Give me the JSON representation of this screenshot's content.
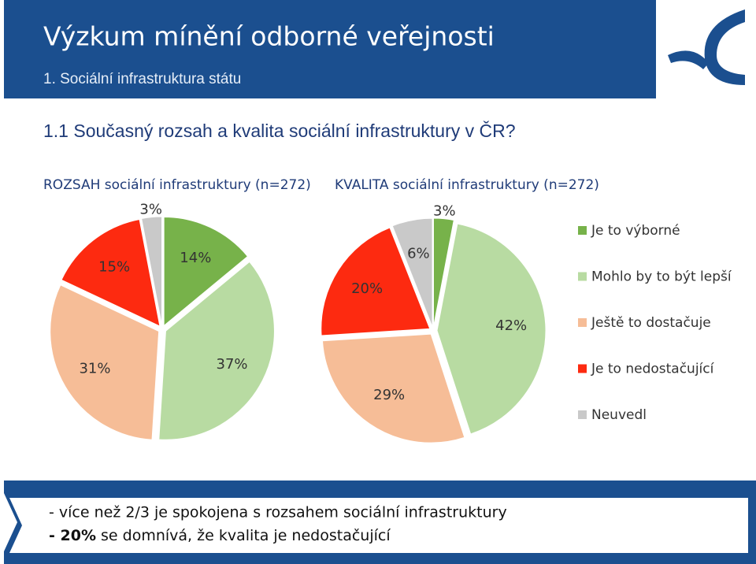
{
  "header": {
    "title": "Výzkum mínění odborné veřejnosti",
    "subtitle": "1. Sociální infrastruktura státu"
  },
  "heading": "1.1 Současný rozsah a kvalita sociální infrastruktury v ČR?",
  "chart_data": [
    {
      "type": "pie",
      "title": "ROZSAH sociální infrastruktury (n=272)",
      "categories": [
        "Je to výborné",
        "Mohlo by to být lepší",
        "Ještě to dostačuje",
        "Je to nedostačující",
        "Neuvedl"
      ],
      "values": [
        14,
        37,
        31,
        15,
        3
      ],
      "value_labels": [
        "14%",
        "37%",
        "31%",
        "15%",
        "3%"
      ],
      "colors": [
        "#77b24a",
        "#b8dba2",
        "#f6bd97",
        "#fd2a10",
        "#c9c9c9"
      ]
    },
    {
      "type": "pie",
      "title": "KVALITA sociální infrastruktury (n=272)",
      "categories": [
        "Je to výborné",
        "Mohlo by to být lepší",
        "Ještě to dostačuje",
        "Je to nedostačující",
        "Neuvedl"
      ],
      "values": [
        3,
        42,
        29,
        20,
        6
      ],
      "value_labels": [
        "3%",
        "42%",
        "29%",
        "20%",
        "6%"
      ],
      "colors": [
        "#77b24a",
        "#b8dba2",
        "#f6bd97",
        "#fd2a10",
        "#c9c9c9"
      ]
    }
  ],
  "footer": {
    "line1": "- více než 2/3 je spokojena s rozsahem sociální infrastruktury",
    "line2_bold": "- 20%",
    "line2_rest": "se domnívá, že kvalita je nedostačující"
  }
}
